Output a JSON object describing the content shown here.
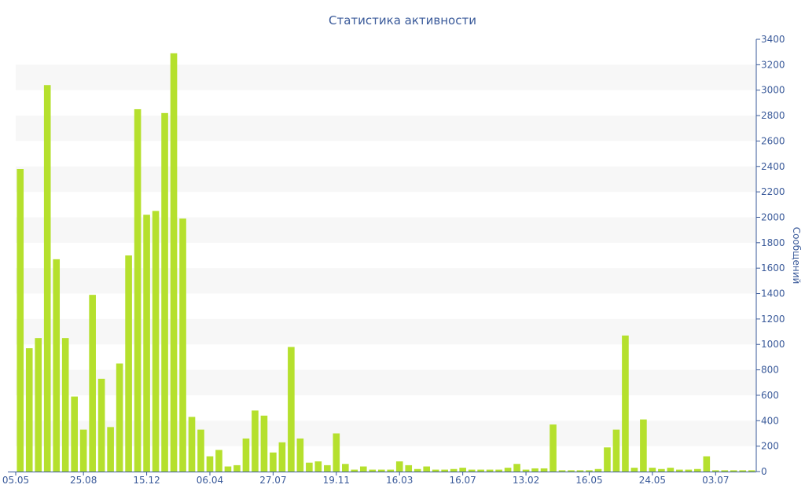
{
  "chart_data": {
    "type": "bar",
    "title": "Статистика активности",
    "ylabel": "Сообщений",
    "xlabel": "",
    "ylim": [
      0,
      3400
    ],
    "y_ticks": [
      0,
      200,
      400,
      600,
      800,
      1000,
      1200,
      1400,
      1600,
      1800,
      2000,
      2200,
      2400,
      2600,
      2800,
      3000,
      3200,
      3400
    ],
    "y_axis_position": "right",
    "x_tick_labels": [
      "05.05",
      "25.08",
      "15.12",
      "06.04",
      "27.07",
      "19.11",
      "16.03",
      "16.07",
      "13.02",
      "16.05",
      "24.05",
      "03.07"
    ],
    "x_tick_bar_index": [
      0,
      7,
      14,
      21,
      28,
      35,
      42,
      49,
      56,
      63,
      70,
      77
    ],
    "values": [
      2380,
      970,
      1050,
      3040,
      1670,
      1050,
      590,
      330,
      1390,
      730,
      350,
      850,
      1700,
      2850,
      2020,
      2050,
      2820,
      3290,
      1990,
      430,
      330,
      120,
      170,
      40,
      50,
      260,
      480,
      440,
      150,
      230,
      980,
      260,
      70,
      80,
      50,
      300,
      60,
      15,
      40,
      15,
      15,
      15,
      80,
      50,
      20,
      40,
      15,
      15,
      20,
      30,
      15,
      15,
      15,
      15,
      30,
      60,
      15,
      25,
      25,
      370,
      10,
      10,
      10,
      10,
      20,
      190,
      330,
      1070,
      30,
      410,
      30,
      20,
      30,
      15,
      15,
      20,
      120,
      10,
      10,
      10,
      10,
      10
    ],
    "grid": "horizontal bands",
    "legend": "none",
    "colors": {
      "bar": "#b5e02d",
      "band": "#f7f7f7",
      "text": "#3a5a9a",
      "axis": "#3a5a9a"
    }
  }
}
